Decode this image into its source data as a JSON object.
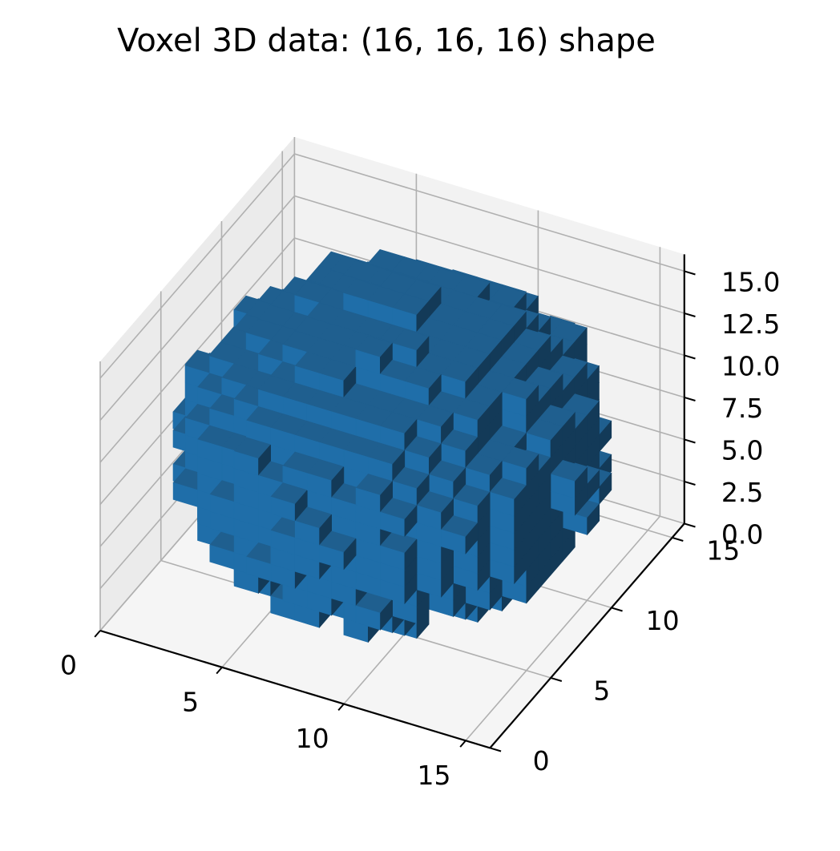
{
  "chart_data": {
    "type": "voxel3d",
    "title": "Voxel 3D data: (16, 16, 16) shape",
    "grid_shape": [
      16,
      16,
      16
    ],
    "shape": "sphere",
    "sphere_center": [
      7.5,
      7.5,
      7.5
    ],
    "sphere_radius": 7.6,
    "boundary_noise": 0.8,
    "xlim": [
      0,
      16
    ],
    "ylim": [
      0,
      16
    ],
    "zlim": [
      0,
      16
    ],
    "x_ticks": [
      "0",
      "5",
      "10",
      "15"
    ],
    "y_ticks": [
      "0",
      "5",
      "10",
      "15"
    ],
    "z_ticks": [
      "0.0",
      "2.5",
      "5.0",
      "7.5",
      "10.0",
      "12.5",
      "15.0"
    ],
    "grid": true,
    "colors": {
      "voxel_top": "#1f5f8f",
      "voxel_front": "#1f6ea9",
      "voxel_side": "#133a58",
      "pane_back": "#f2f2f2",
      "pane_left": "#ebebeb",
      "pane_floor": "#f5f5f5",
      "grid": "#b0b0b0"
    }
  }
}
